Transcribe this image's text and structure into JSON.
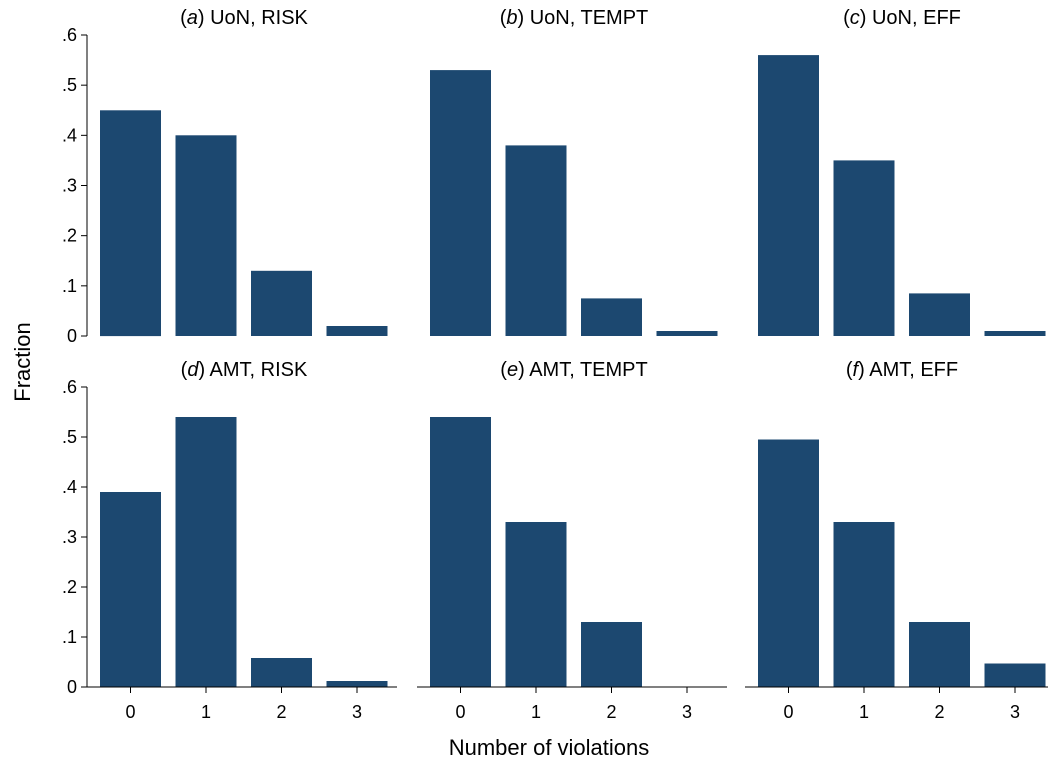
{
  "chart_data": {
    "type": "bar",
    "xlabel": "Number of violations",
    "ylabel": "Fraction",
    "ylim": [
      0,
      0.6
    ],
    "yticks": [
      {
        "value": 0,
        "label": "0"
      },
      {
        "value": 0.1,
        "label": ".1"
      },
      {
        "value": 0.2,
        "label": ".2"
      },
      {
        "value": 0.3,
        "label": ".3"
      },
      {
        "value": 0.4,
        "label": ".4"
      },
      {
        "value": 0.5,
        "label": ".5"
      },
      {
        "value": 0.6,
        "label": ".6"
      }
    ],
    "categories": [
      "0",
      "1",
      "2",
      "3"
    ],
    "bar_color": "#1c4870",
    "panels": [
      {
        "letter": "a",
        "title": "UoN, RISK",
        "values": [
          0.45,
          0.4,
          0.13,
          0.02
        ]
      },
      {
        "letter": "b",
        "title": "UoN, TEMPT",
        "values": [
          0.53,
          0.38,
          0.075,
          0.01
        ]
      },
      {
        "letter": "c",
        "title": "UoN, EFF",
        "values": [
          0.56,
          0.35,
          0.085,
          0.01
        ]
      },
      {
        "letter": "d",
        "title": "AMT, RISK",
        "values": [
          0.39,
          0.54,
          0.058,
          0.012
        ]
      },
      {
        "letter": "e",
        "title": "AMT, TEMPT",
        "values": [
          0.54,
          0.33,
          0.13,
          0.0
        ]
      },
      {
        "letter": "f",
        "title": "AMT, EFF",
        "values": [
          0.495,
          0.33,
          0.13,
          0.047
        ]
      }
    ]
  }
}
